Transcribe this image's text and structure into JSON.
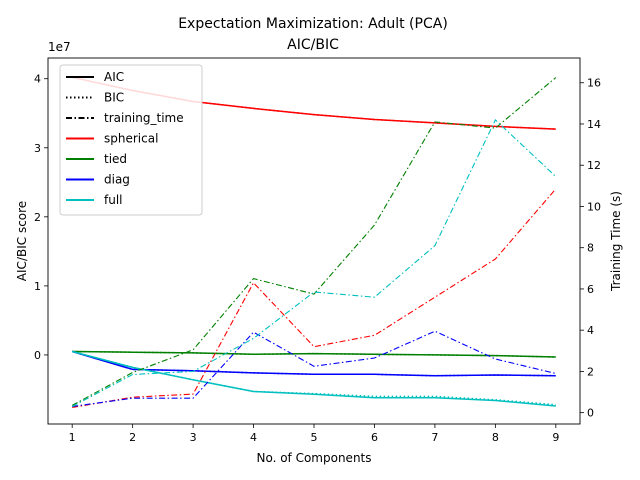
{
  "chart_data": {
    "type": "line",
    "title": "Expectation Maximization: Adult (PCA)",
    "subtitle": "AIC/BIC",
    "xlabel": "No. of Components",
    "ylabel_left": "AIC/BIC score",
    "ylabel_right": "Training Time (s)",
    "left_offset_label": "1e7",
    "x": [
      1,
      2,
      3,
      4,
      5,
      6,
      7,
      8,
      9
    ],
    "x_ticks": [
      "1",
      "2",
      "3",
      "4",
      "5",
      "6",
      "7",
      "8",
      "9"
    ],
    "left_ylim": [
      -10000000.0,
      43000000.0
    ],
    "left_ticks": [
      0,
      10000000.0,
      20000000.0,
      30000000.0,
      40000000.0
    ],
    "left_tick_labels": [
      "0",
      "1",
      "2",
      "3",
      "4"
    ],
    "right_ylim": [
      -0.55,
      17.2
    ],
    "right_ticks": [
      0,
      2,
      4,
      6,
      8,
      10,
      12,
      14,
      16
    ],
    "right_tick_labels": [
      "0",
      "2",
      "4",
      "6",
      "8",
      "10",
      "12",
      "14",
      "16"
    ],
    "grid": false,
    "legend_position": "top-left",
    "legend": [
      {
        "label": "AIC",
        "color": "#000000",
        "dash": "solid"
      },
      {
        "label": "BIC",
        "color": "#000000",
        "dash": "dotted"
      },
      {
        "label": "training_time",
        "color": "#000000",
        "dash": "dashdot"
      },
      {
        "label": "spherical",
        "color": "#ff0000",
        "dash": "solid"
      },
      {
        "label": "tied",
        "color": "#008000",
        "dash": "solid"
      },
      {
        "label": "diag",
        "color": "#0000ff",
        "dash": "solid"
      },
      {
        "label": "full",
        "color": "#00bfbf",
        "dash": "solid"
      }
    ],
    "series": [
      {
        "name": "spherical",
        "metric": "AIC",
        "axis": "left",
        "color": "#ff0000",
        "dash": "solid",
        "values": [
          40200000,
          38300000,
          36700000,
          35700000,
          34800000,
          34100000,
          33600000,
          33100000,
          32700000
        ]
      },
      {
        "name": "spherical",
        "metric": "BIC",
        "axis": "left",
        "color": "#ff0000",
        "dash": "dotted",
        "values": [
          40200000,
          38300000,
          36700000,
          35700000,
          34800000,
          34100000,
          33600000,
          33100000,
          32700000
        ]
      },
      {
        "name": "tied",
        "metric": "AIC",
        "axis": "left",
        "color": "#008000",
        "dash": "solid",
        "values": [
          500000,
          400000,
          300000,
          100000,
          200000,
          100000,
          0,
          -100000,
          -300000
        ]
      },
      {
        "name": "tied",
        "metric": "BIC",
        "axis": "left",
        "color": "#008000",
        "dash": "dotted",
        "values": [
          500000,
          400000,
          300000,
          100000,
          200000,
          100000,
          0,
          -100000,
          -300000
        ]
      },
      {
        "name": "diag",
        "metric": "AIC",
        "axis": "left",
        "color": "#0000ff",
        "dash": "solid",
        "values": [
          500000,
          -2100000,
          -2300000,
          -2600000,
          -2800000,
          -2800000,
          -3000000,
          -2900000,
          -3000000
        ]
      },
      {
        "name": "diag",
        "metric": "BIC",
        "axis": "left",
        "color": "#0000ff",
        "dash": "dotted",
        "values": [
          500000,
          -2100000,
          -2300000,
          -2600000,
          -2800000,
          -2800000,
          -3000000,
          -2900000,
          -3000000
        ]
      },
      {
        "name": "full",
        "metric": "AIC",
        "axis": "left",
        "color": "#00bfbf",
        "dash": "solid",
        "values": [
          500000,
          -1800000,
          -3600000,
          -5300000,
          -5700000,
          -6200000,
          -6200000,
          -6600000,
          -7400000
        ]
      },
      {
        "name": "full",
        "metric": "BIC",
        "axis": "left",
        "color": "#00bfbf",
        "dash": "dotted",
        "values": [
          500000,
          -1800000,
          -3600000,
          -5300000,
          -5600000,
          -6000000,
          -6000000,
          -6500000,
          -7200000
        ]
      },
      {
        "name": "spherical",
        "metric": "training_time",
        "axis": "right",
        "color": "#ff0000",
        "dash": "dashdot",
        "values": [
          0.25,
          0.75,
          0.9,
          6.3,
          3.2,
          3.75,
          5.6,
          7.45,
          10.85
        ]
      },
      {
        "name": "tied",
        "metric": "training_time",
        "axis": "right",
        "color": "#008000",
        "dash": "dashdot",
        "values": [
          0.35,
          1.95,
          3.05,
          6.5,
          5.75,
          9.1,
          14.1,
          13.8,
          16.25
        ]
      },
      {
        "name": "diag",
        "metric": "training_time",
        "axis": "right",
        "color": "#0000ff",
        "dash": "dashdot",
        "values": [
          0.3,
          0.7,
          0.7,
          3.9,
          2.25,
          2.65,
          3.95,
          2.6,
          1.9
        ]
      },
      {
        "name": "full",
        "metric": "training_time",
        "axis": "right",
        "color": "#00bfbf",
        "dash": "dashdot",
        "values": [
          0.3,
          1.85,
          2.0,
          3.6,
          5.85,
          5.6,
          8.1,
          14.2,
          11.45
        ]
      }
    ]
  }
}
